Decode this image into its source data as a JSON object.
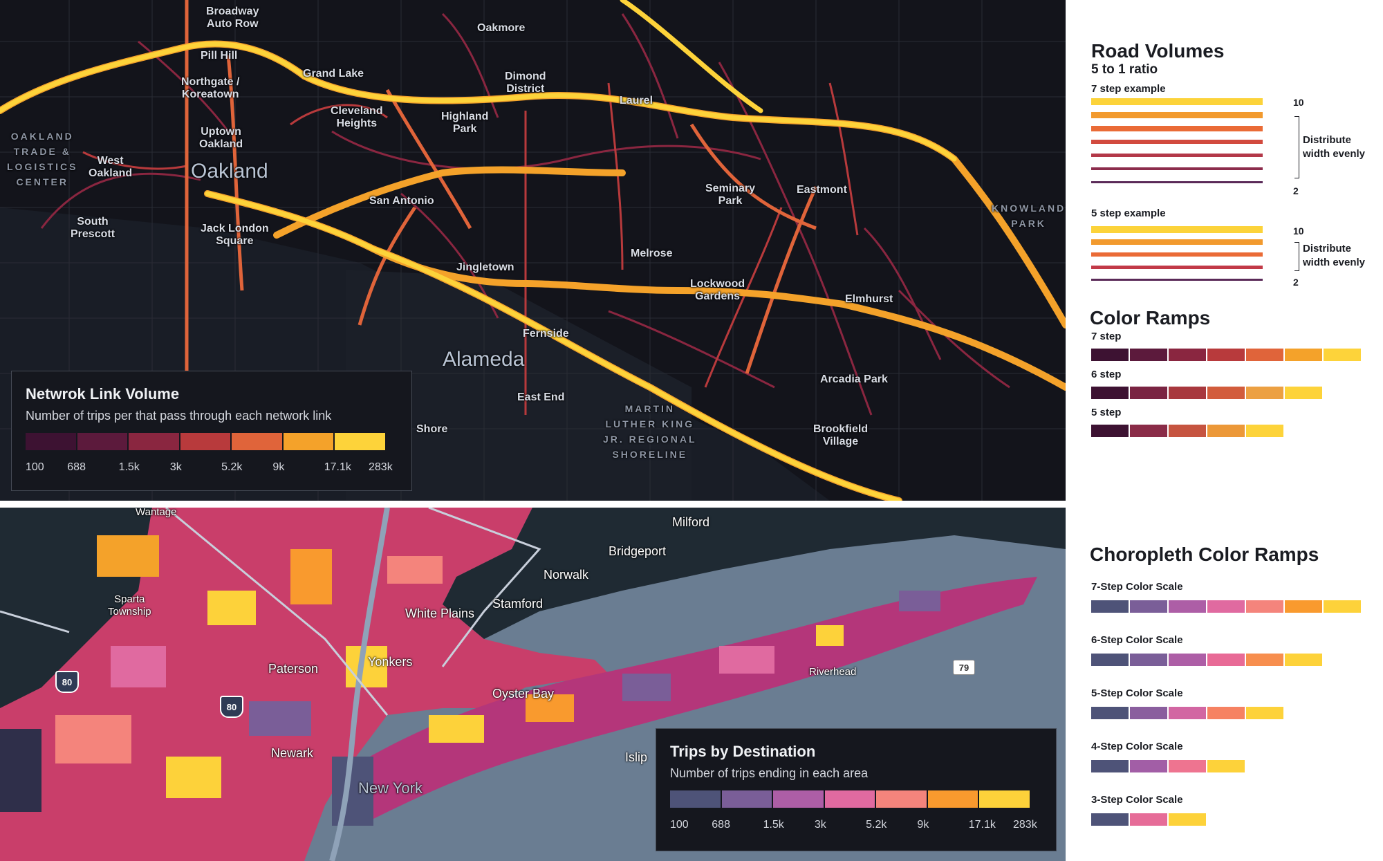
{
  "top_map": {
    "labels": [
      {
        "text": "Broadway\nAuto Row"
      },
      {
        "text": "Oakmore"
      },
      {
        "text": "Pill Hill"
      },
      {
        "text": "Grand Lake"
      },
      {
        "text": "Dimond\nDistrict"
      },
      {
        "text": "Northgate /\nKoreatown"
      },
      {
        "text": "Laurel"
      },
      {
        "text": "Cleveland\nHeights"
      },
      {
        "text": "Highland\nPark"
      },
      {
        "text": "Uptown\nOakland"
      },
      {
        "text": "West\nOakland"
      },
      {
        "text": "Oakland"
      },
      {
        "text": "OAKLAND\nTRADE &\nLOGISTICS\nCENTER"
      },
      {
        "text": "Seminary\nPark"
      },
      {
        "text": "Eastmont"
      },
      {
        "text": "San Antonio"
      },
      {
        "text": "South\nPrescott"
      },
      {
        "text": "Jack London\nSquare"
      },
      {
        "text": "KNOWLAND\nPARK"
      },
      {
        "text": "Melrose"
      },
      {
        "text": "Jingletown"
      },
      {
        "text": "Lockwood\nGardens"
      },
      {
        "text": "Elmhurst"
      },
      {
        "text": "Fernside"
      },
      {
        "text": "Alameda"
      },
      {
        "text": "Arcadia Park"
      },
      {
        "text": "East End"
      },
      {
        "text": "MARTIN\nLUTHER KING\nJR. REGIONAL\nSHORELINE"
      },
      {
        "text": "Brookfield\nVillage"
      },
      {
        "text": "Shore"
      }
    ],
    "legend": {
      "title": "Netwrok Link Volume",
      "subtitle": "Number of trips per that pass through each network link",
      "colors": [
        "#3d1232",
        "#5c1a3c",
        "#8a2640",
        "#b83a3c",
        "#e0643a",
        "#f4a22a",
        "#fdd33a"
      ],
      "ticks": [
        "100",
        "688",
        "1.5k",
        "3k",
        "5.2k",
        "9k",
        "17.1k",
        "283k"
      ]
    }
  },
  "bottom_map": {
    "labels": [
      {
        "text": "Wantage"
      },
      {
        "text": "Milford"
      },
      {
        "text": "Bridgeport"
      },
      {
        "text": "Norwalk"
      },
      {
        "text": "Sparta\nTownship"
      },
      {
        "text": "Stamford"
      },
      {
        "text": "White Plains"
      },
      {
        "text": "Yonkers"
      },
      {
        "text": "Paterson"
      },
      {
        "text": "Oyster Bay"
      },
      {
        "text": "Riverhead"
      },
      {
        "text": "Newark"
      },
      {
        "text": "New York"
      },
      {
        "text": "Islip"
      }
    ],
    "shields": [
      "80",
      "80",
      "79"
    ],
    "legend": {
      "title": "Trips by Destination",
      "subtitle": "Number of trips ending in each area",
      "colors": [
        "#4e5378",
        "#7a5e98",
        "#ad5ea6",
        "#e06aa0",
        "#f4847c",
        "#f99a2e",
        "#fdd23a"
      ],
      "ticks": [
        "100",
        "688",
        "1.5k",
        "3k",
        "5.2k",
        "9k",
        "17.1k",
        "283k"
      ]
    }
  },
  "sidebar": {
    "road_volumes": {
      "title": "Road Volumes",
      "subtitle": "5 to 1 ratio",
      "seven_step": {
        "label": "7 step example",
        "colors": [
          "#fcd33a",
          "#f29a2e",
          "#ea6b36",
          "#d24a3e",
          "#b33848",
          "#8c2c4c",
          "#5a2a58"
        ],
        "max_label": "10",
        "min_label": "2",
        "annotation": "Distribute\nwidth evenly"
      },
      "five_step": {
        "label": "5 step example",
        "colors": [
          "#fcd33a",
          "#f29a2e",
          "#ea6b36",
          "#c23a48",
          "#5a2a58"
        ],
        "max_label": "10",
        "min_label": "2",
        "annotation": "Distribute\nwidth evenly"
      }
    },
    "color_ramps": {
      "title": "Color Ramps",
      "ramps": [
        {
          "label": "7 step",
          "colors": [
            "#3d1232",
            "#5c1a3c",
            "#8a2640",
            "#b83a3c",
            "#e0643a",
            "#f4a22a",
            "#fdd33a"
          ]
        },
        {
          "label": "6 step",
          "colors": [
            "#3d1232",
            "#7a2442",
            "#a8383e",
            "#d25c3c",
            "#eca042",
            "#fdd33a"
          ]
        },
        {
          "label": "5 step",
          "colors": [
            "#3d1232",
            "#8a2c48",
            "#c65440",
            "#ec9838",
            "#fdd33a"
          ]
        }
      ]
    },
    "choropleth_ramps": {
      "title": "Choropleth Color Ramps",
      "ramps": [
        {
          "label": "7-Step Color Scale",
          "colors": [
            "#4e5378",
            "#7a5e98",
            "#ad5ea6",
            "#e06aa0",
            "#f4847c",
            "#f99a2e",
            "#fdd23a"
          ]
        },
        {
          "label": "6-Step Color Scale",
          "colors": [
            "#4e5378",
            "#7a5e98",
            "#ad5ea6",
            "#e86a96",
            "#f78e4e",
            "#fdd23a"
          ]
        },
        {
          "label": "5-Step Color Scale",
          "colors": [
            "#4e5378",
            "#8a5e9e",
            "#d266a2",
            "#f68262",
            "#fdd23a"
          ]
        },
        {
          "label": "4-Step Color Scale",
          "colors": [
            "#4e5378",
            "#a25ea6",
            "#ee7490",
            "#fdd23a"
          ]
        },
        {
          "label": "3-Step Color Scale",
          "colors": [
            "#4e5378",
            "#e66c98",
            "#fdd23a"
          ]
        }
      ]
    }
  }
}
